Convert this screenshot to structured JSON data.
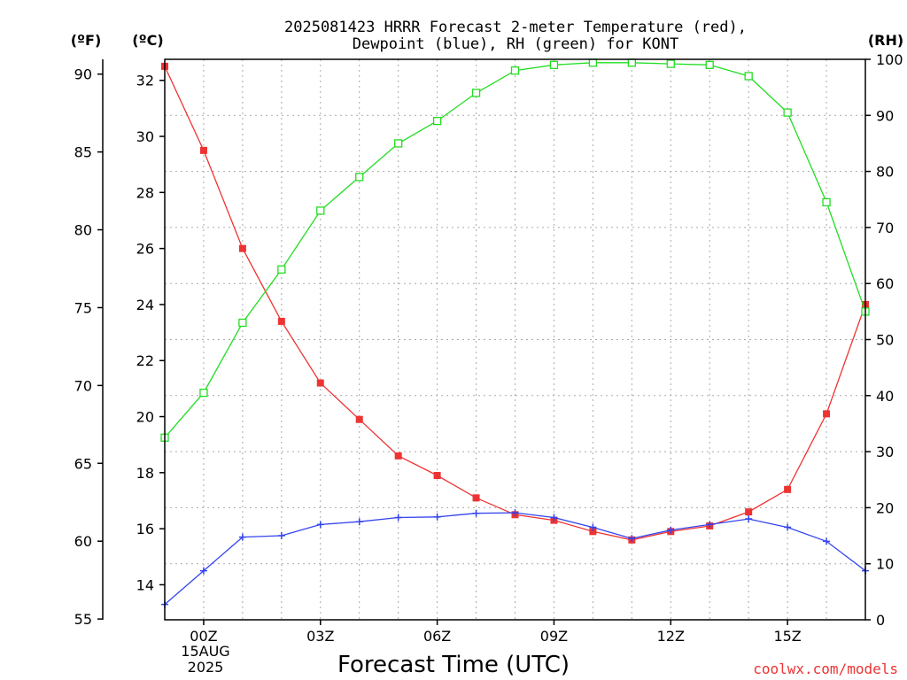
{
  "chart_data": {
    "type": "line",
    "title_line1": "2025081423 HRRR Forecast 2-meter Temperature (red),",
    "title_line2": "Dewpoint (blue), RH (green) for KONT",
    "xlabel": "Forecast Time (UTC)",
    "left_outer_unit": "(ºF)",
    "left_inner_unit": "(ºC)",
    "right_unit": "(RH)",
    "credit": "coolwx.com/models",
    "x_ticks": [
      {
        "hour": 0,
        "label": "00Z"
      },
      {
        "hour": 3,
        "label": "03Z"
      },
      {
        "hour": 6,
        "label": "06Z"
      },
      {
        "hour": 9,
        "label": "09Z"
      },
      {
        "hour": 12,
        "label": "12Z"
      },
      {
        "hour": 15,
        "label": "15Z"
      }
    ],
    "date_label_line1": "15AUG",
    "date_label_line2": "2025",
    "xlim": [
      -1,
      17
    ],
    "y_celsius_range": [
      12.75,
      32.75
    ],
    "y_celsius_ticks": [
      14,
      16,
      18,
      20,
      22,
      24,
      26,
      28,
      30,
      32
    ],
    "y_fahrenheit_ticks": [
      55,
      60,
      65,
      70,
      75,
      80,
      85,
      90
    ],
    "y_rh_range": [
      0,
      100
    ],
    "y_rh_ticks": [
      0,
      10,
      20,
      30,
      40,
      50,
      60,
      70,
      80,
      90,
      100
    ],
    "grid": true,
    "x": [
      -1,
      0,
      1,
      2,
      3,
      4,
      5,
      6,
      7,
      8,
      9,
      10,
      11,
      12,
      13,
      14,
      15,
      16,
      17
    ],
    "series": [
      {
        "name": "Temperature",
        "axis": "celsius",
        "color": "#ee3333",
        "marker": "filled-square",
        "values": [
          32.5,
          29.5,
          26.0,
          23.4,
          21.2,
          19.9,
          18.6,
          17.9,
          17.1,
          16.5,
          16.3,
          15.9,
          15.6,
          15.9,
          16.1,
          16.6,
          17.4,
          20.1,
          24.0
        ]
      },
      {
        "name": "Dewpoint",
        "axis": "celsius",
        "color": "#3344ee",
        "marker": "plus",
        "values": [
          13.3,
          14.5,
          15.7,
          15.75,
          16.15,
          16.25,
          16.4,
          16.42,
          16.55,
          16.57,
          16.4,
          16.05,
          15.65,
          15.95,
          16.15,
          16.35,
          16.05,
          15.55,
          14.5
        ]
      },
      {
        "name": "RH",
        "axis": "rh",
        "color": "#22dd22",
        "marker": "open-square",
        "values": [
          32.5,
          40.5,
          53.0,
          62.5,
          73.0,
          79.0,
          85.0,
          89.0,
          94.0,
          98.0,
          99.0,
          99.4,
          99.4,
          99.2,
          99.0,
          97.0,
          90.5,
          74.5,
          55.0
        ]
      }
    ]
  }
}
